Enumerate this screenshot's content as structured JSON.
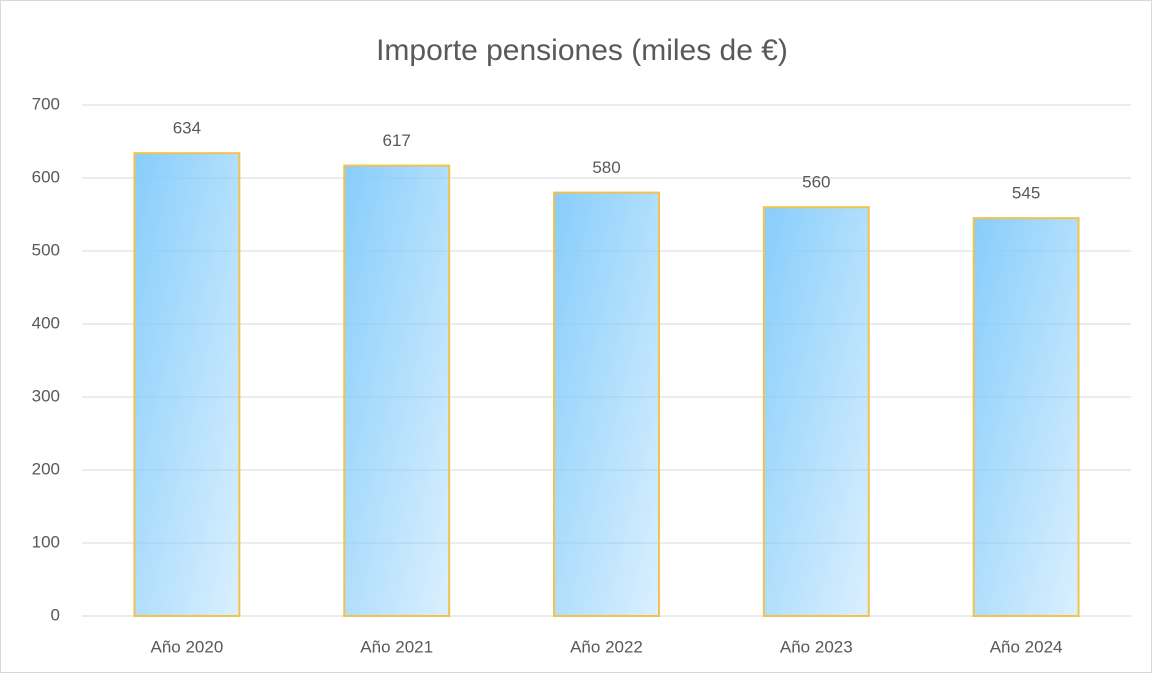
{
  "chart_data": {
    "type": "bar",
    "title": "Importe pensiones (miles de €)",
    "categories": [
      "Año 2020",
      "Año 2021",
      "Año 2022",
      "Año 2023",
      "Año 2024"
    ],
    "values": [
      634,
      617,
      580,
      560,
      545
    ],
    "color": "#87cdfb",
    "edge_color": "#f0c24e",
    "ylim": [
      0,
      700
    ],
    "yticks": [
      0,
      100,
      200,
      300,
      400,
      500,
      600,
      700
    ],
    "grid": true
  }
}
